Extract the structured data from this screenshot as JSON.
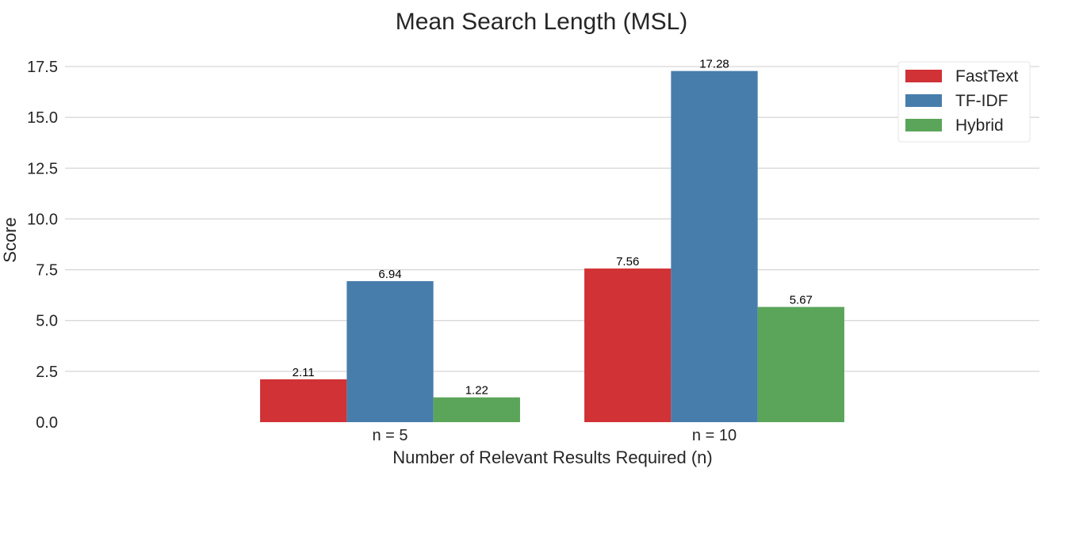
{
  "chart_data": {
    "type": "bar",
    "title": "Mean Search Length (MSL)",
    "xlabel": "Number of Relevant Results Required (n)",
    "ylabel": "Score",
    "categories": [
      "n = 5",
      "n = 10"
    ],
    "series": [
      {
        "name": "FastText",
        "values": [
          2.11,
          7.56
        ],
        "labels": [
          "2.11",
          "7.56"
        ],
        "color": "#d03236"
      },
      {
        "name": "TF-IDF",
        "values": [
          6.94,
          17.28
        ],
        "labels": [
          "6.94",
          "17.28"
        ],
        "color": "#477dab"
      },
      {
        "name": "Hybrid",
        "values": [
          1.22,
          5.67
        ],
        "labels": [
          "1.22",
          "5.67"
        ],
        "color": "#5ba55a"
      }
    ],
    "ylim": [
      0,
      17.5
    ],
    "yticks": [
      "0.0",
      "2.5",
      "5.0",
      "7.5",
      "10.0",
      "12.5",
      "15.0",
      "17.5"
    ],
    "grid": "horizontal",
    "legend_position": "top-right"
  }
}
